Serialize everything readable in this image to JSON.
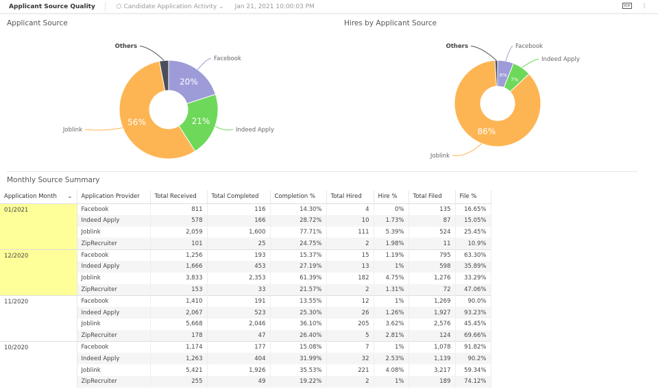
{
  "header": {
    "title": "Applicant Source Quality",
    "dataset": "Candidate Application Activity",
    "timestamp": "Jan 21, 2021 10:00:03 PM",
    "pdf_label": "PDF",
    "icons": [
      "cube-icon",
      "chevron-down-icon",
      "pdf-icon",
      "more-vertical-icon"
    ]
  },
  "chart_data": [
    {
      "type": "pie",
      "title": "Applicant Source",
      "donut": true,
      "categories": [
        "Facebook",
        "Indeed Apply",
        "Joblink",
        "Others"
      ],
      "values": [
        20,
        21,
        56,
        3
      ],
      "labels": [
        "20%",
        "21%",
        "56%",
        ""
      ],
      "colors": [
        "#9d9bd8",
        "#6ed85a",
        "#fdb553",
        "#4a4f5a"
      ]
    },
    {
      "type": "pie",
      "title": "Hires by Applicant Source",
      "donut": true,
      "categories": [
        "Facebook",
        "Indeed Apply",
        "Joblink",
        "Others"
      ],
      "values": [
        6,
        7,
        86,
        1
      ],
      "labels": [
        "6%",
        "7%",
        "86%",
        ""
      ],
      "colors": [
        "#9d9bd8",
        "#6ed85a",
        "#fdb553",
        "#4a4f5a"
      ]
    }
  ],
  "table": {
    "title": "Monthly Source Summary",
    "columns": [
      "Application Month",
      "Application Provider",
      "Total Received",
      "Total Completed",
      "Completion %",
      "Total Hired",
      "Hire %",
      "Total Filed",
      "File %"
    ],
    "groups": [
      {
        "month": "01/2021",
        "highlight": true,
        "rows": [
          [
            "Facebook",
            "811",
            "116",
            "14.30%",
            "4",
            "0%",
            "135",
            "16.65%"
          ],
          [
            "Indeed Apply",
            "578",
            "166",
            "28.72%",
            "10",
            "1.73%",
            "87",
            "15.05%"
          ],
          [
            "Joblink",
            "2,059",
            "1,600",
            "77.71%",
            "111",
            "5.39%",
            "524",
            "25.45%"
          ],
          [
            "ZipRecruiter",
            "101",
            "25",
            "24.75%",
            "2",
            "1.98%",
            "11",
            "10.9%"
          ]
        ]
      },
      {
        "month": "12/2020",
        "highlight": true,
        "rows": [
          [
            "Facebook",
            "1,256",
            "193",
            "15.37%",
            "15",
            "1.19%",
            "795",
            "63.30%"
          ],
          [
            "Indeed Apply",
            "1,666",
            "453",
            "27.19%",
            "13",
            "1%",
            "598",
            "35.89%"
          ],
          [
            "Joblink",
            "3,833",
            "2,353",
            "61.39%",
            "182",
            "4.75%",
            "1,276",
            "33.29%"
          ],
          [
            "ZipRecruiter",
            "153",
            "33",
            "21.57%",
            "2",
            "1.31%",
            "72",
            "47.06%"
          ]
        ]
      },
      {
        "month": "11/2020",
        "highlight": false,
        "rows": [
          [
            "Facebook",
            "1,410",
            "191",
            "13.55%",
            "12",
            "1%",
            "1,269",
            "90.0%"
          ],
          [
            "Indeed Apply",
            "2,067",
            "523",
            "25.30%",
            "26",
            "1.26%",
            "1,927",
            "93.23%"
          ],
          [
            "Joblink",
            "5,668",
            "2,046",
            "36.10%",
            "205",
            "3.62%",
            "2,576",
            "45.45%"
          ],
          [
            "ZipRecruiter",
            "178",
            "47",
            "26.40%",
            "5",
            "2.81%",
            "124",
            "69.66%"
          ]
        ]
      },
      {
        "month": "10/2020",
        "highlight": false,
        "rows": [
          [
            "Facebook",
            "1,174",
            "177",
            "15.08%",
            "7",
            "1%",
            "1,078",
            "91.82%"
          ],
          [
            "Indeed Apply",
            "1,263",
            "404",
            "31.99%",
            "32",
            "2.53%",
            "1,139",
            "90.2%"
          ],
          [
            "Joblink",
            "5,421",
            "1,926",
            "35.53%",
            "221",
            "4.08%",
            "3,217",
            "59.34%"
          ],
          [
            "ZipRecruiter",
            "255",
            "49",
            "19.22%",
            "2",
            "1%",
            "189",
            "74.12%"
          ]
        ]
      }
    ]
  }
}
